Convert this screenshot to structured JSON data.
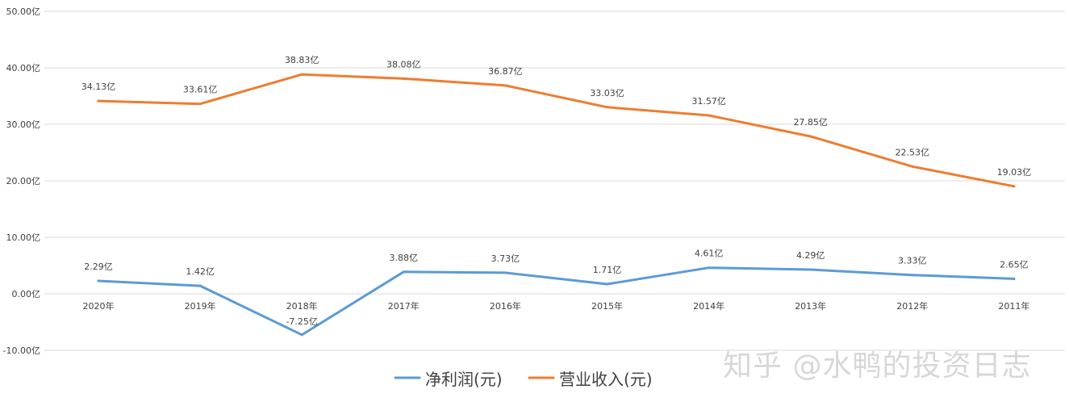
{
  "chart_data": {
    "type": "line",
    "categories": [
      "2020年",
      "2019年",
      "2018年",
      "2017年",
      "2016年",
      "2015年",
      "2014年",
      "2013年",
      "2012年",
      "2011年"
    ],
    "series": [
      {
        "name": "净利润(元)",
        "color": "#5b9bd5",
        "values": [
          2.29,
          1.42,
          -7.25,
          3.88,
          3.73,
          1.71,
          4.61,
          4.29,
          3.33,
          2.65
        ],
        "labels": [
          "2.29亿",
          "1.42亿",
          "-7.25亿",
          "3.88亿",
          "3.73亿",
          "1.71亿",
          "4.61亿",
          "4.29亿",
          "3.33亿",
          "2.65亿"
        ]
      },
      {
        "name": "营业收入(元)",
        "color": "#ed7d31",
        "values": [
          34.13,
          33.61,
          38.83,
          38.08,
          36.87,
          33.03,
          31.57,
          27.85,
          22.53,
          19.03
        ],
        "labels": [
          "34.13亿",
          "33.61亿",
          "38.83亿",
          "38.08亿",
          "36.87亿",
          "33.03亿",
          "31.57亿",
          "27.85亿",
          "22.53亿",
          "19.03亿"
        ]
      }
    ],
    "yticks": [
      50,
      40,
      30,
      20,
      10,
      0,
      -10
    ],
    "ytick_labels": [
      "50.00亿",
      "40.00亿",
      "30.00亿",
      "20.00亿",
      "10.00亿",
      "0.00亿",
      "-10.00亿"
    ],
    "ylim": [
      -10,
      50
    ],
    "grid": true,
    "legend": "bottom-center",
    "colors": {
      "gridline": "#d9d9d9",
      "text": "#404040"
    }
  },
  "watermark": "知乎 @水鸭的投资日志"
}
